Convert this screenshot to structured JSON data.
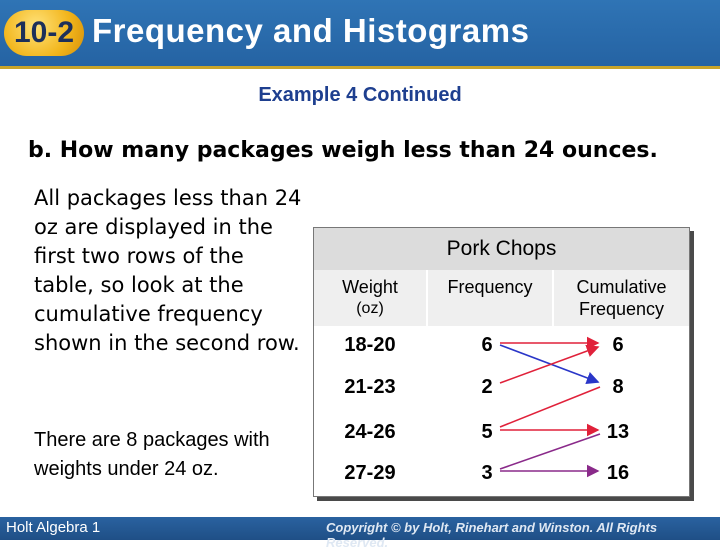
{
  "header": {
    "badge": "10-2",
    "title": "Frequency and Histograms"
  },
  "subtitle": "Example 4 Continued",
  "question": "b. How many packages weigh less than 24 ounces.",
  "paragraph1": "All packages less than 24 oz are displayed in the first two rows of the table, so look at the cumulative frequency shown in the second row.",
  "paragraph2": "There are 8 packages with weights under 24 oz.",
  "table": {
    "title": "Pork Chops",
    "headers": {
      "weight": [
        "Weight",
        "(oz)"
      ],
      "frequency": "Frequency",
      "cumulative": [
        "Cumulative",
        "Frequency"
      ]
    },
    "rows": [
      {
        "weight": "18-20",
        "frequency": "6",
        "cumulative": "6"
      },
      {
        "weight": "21-23",
        "frequency": "2",
        "cumulative": "8"
      },
      {
        "weight": "24-26",
        "frequency": "5",
        "cumulative": "13"
      },
      {
        "weight": "27-29",
        "frequency": "3",
        "cumulative": "16"
      }
    ]
  },
  "arrow_colors": {
    "red": "#e0213a",
    "blue": "#2a36c8",
    "purple": "#8a2a8a"
  },
  "footer": {
    "left": "Holt Algebra 1",
    "right": "Copyright © by Holt, Rinehart and Winston. All Rights Reserved."
  }
}
